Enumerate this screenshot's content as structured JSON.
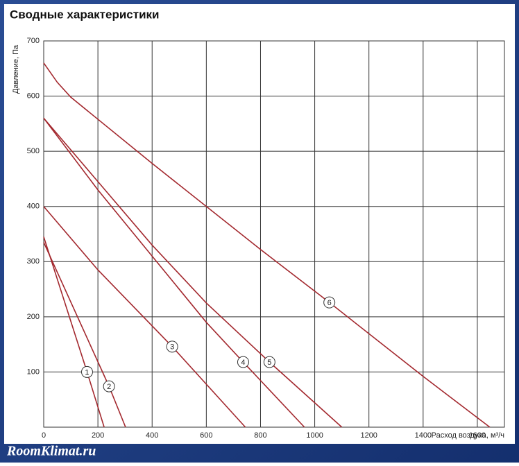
{
  "chart_data": {
    "type": "line",
    "title": "Сводные характеристики",
    "x_label": "Расход воздуха, м³/ч",
    "y_label": "Давление, Па",
    "watermark": "RoomKlimat.ru",
    "xlim": [
      0,
      1700
    ],
    "ylim": [
      0,
      700
    ],
    "xticks": [
      0,
      200,
      400,
      600,
      800,
      1000,
      1200,
      1400,
      1600
    ],
    "yticks": [
      100,
      200,
      300,
      400,
      500,
      600,
      700
    ],
    "grid": true,
    "series": [
      {
        "name": "1",
        "color": "#a3282e",
        "x": [
          0,
          160,
          223
        ],
        "values": [
          345,
          100,
          0
        ]
      },
      {
        "name": "2",
        "color": "#a3282e",
        "x": [
          0,
          241,
          302
        ],
        "values": [
          335,
          74,
          0
        ]
      },
      {
        "name": "3",
        "color": "#a3282e",
        "x": [
          0,
          200,
          474,
          744
        ],
        "values": [
          400,
          285,
          146,
          0
        ]
      },
      {
        "name": "4",
        "color": "#a3282e",
        "x": [
          0,
          200,
          400,
          600,
          736,
          962
        ],
        "values": [
          560,
          430,
          310,
          190,
          118,
          0
        ]
      },
      {
        "name": "5",
        "color": "#a3282e",
        "x": [
          0,
          200,
          400,
          600,
          833,
          1100
        ],
        "values": [
          560,
          445,
          330,
          225,
          118,
          0
        ]
      },
      {
        "name": "6",
        "color": "#a3282e",
        "x": [
          0,
          50,
          100,
          400,
          800,
          1054,
          1400,
          1646
        ],
        "values": [
          660,
          625,
          598,
          478,
          322,
          226,
          92,
          0
        ]
      }
    ]
  }
}
